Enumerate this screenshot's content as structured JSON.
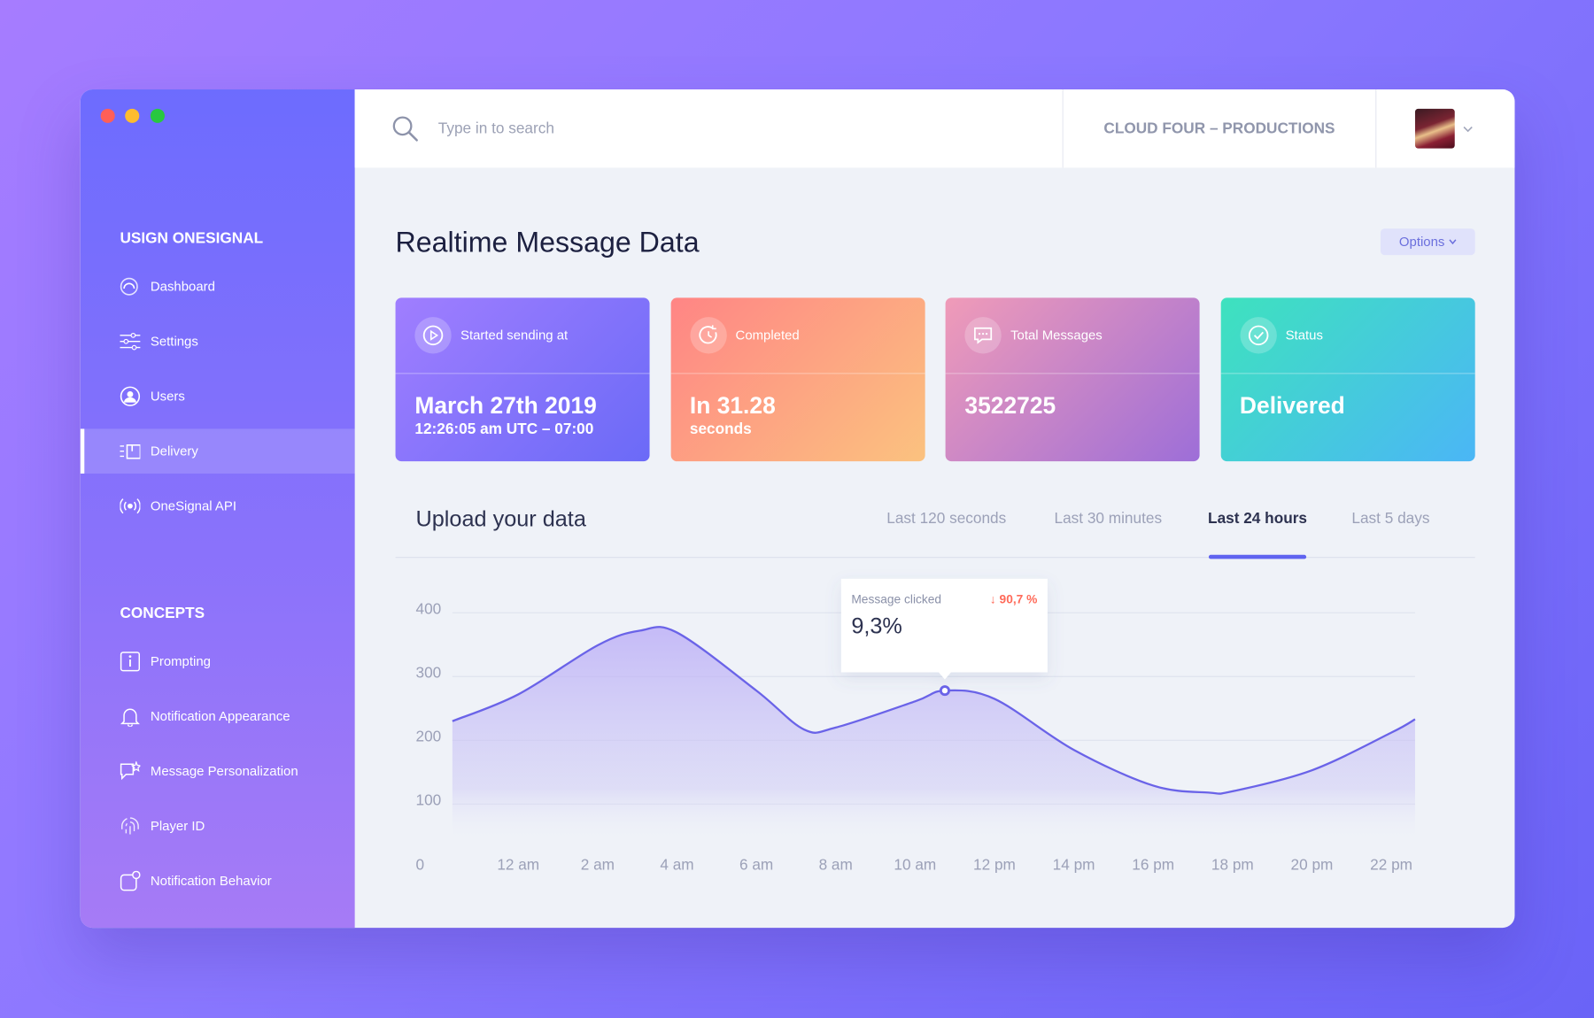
{
  "header": {
    "search_placeholder": "Type in to search",
    "workspace": "CLOUD FOUR – PRODUCTIONS"
  },
  "sidebar": {
    "sections": [
      {
        "title": "USIGN ONESIGNAL",
        "items": [
          {
            "label": "Dashboard"
          },
          {
            "label": "Settings"
          },
          {
            "label": "Users"
          },
          {
            "label": "Delivery",
            "active": true
          },
          {
            "label": "OneSignal API"
          }
        ]
      },
      {
        "title": "CONCEPTS",
        "items": [
          {
            "label": "Prompting"
          },
          {
            "label": "Notification Appearance"
          },
          {
            "label": "Message Personalization"
          },
          {
            "label": "Player ID"
          },
          {
            "label": "Notification Behavior"
          }
        ]
      }
    ]
  },
  "page": {
    "title": "Realtime Message Data",
    "options": "Options"
  },
  "cards": [
    {
      "label": "Started sending at",
      "value": "March 27th 2019",
      "sub": "12:26:05 am UTC – 07:00"
    },
    {
      "label": "Completed",
      "value": "In 31.28",
      "sub": "seconds"
    },
    {
      "label": "Total Messages",
      "value": 3522725
    },
    {
      "label": "Status",
      "value": "Delivered"
    }
  ],
  "tabs": {
    "title": "Upload your data",
    "items": [
      {
        "label": "Last 120 seconds"
      },
      {
        "label": "Last 30 minutes"
      },
      {
        "label": "Last 24 hours",
        "active": true
      },
      {
        "label": "Last 5 days"
      }
    ]
  },
  "chart_data": {
    "type": "area",
    "x": [
      -1.66,
      0,
      2,
      3.07,
      4,
      6,
      7.2,
      8,
      10,
      10.75,
      12,
      14,
      16,
      17.4,
      18,
      20,
      22,
      22.6
    ],
    "values": [
      230,
      272,
      349,
      372,
      369,
      278,
      217,
      220,
      261,
      278,
      265,
      185,
      129,
      118,
      120,
      153,
      212,
      233
    ],
    "color": "#6a63e8",
    "xlim": [
      -1.66,
      22.6
    ],
    "xticks": [
      {
        "value": 0,
        "label": "12 am"
      },
      {
        "value": 2,
        "label": "2 am"
      },
      {
        "value": 4,
        "label": "4 am"
      },
      {
        "value": 6,
        "label": "6 am"
      },
      {
        "value": 8,
        "label": "8 am"
      },
      {
        "value": 10,
        "label": "10 am"
      },
      {
        "value": 12,
        "label": "12 pm"
      },
      {
        "value": 14,
        "label": "14 pm"
      },
      {
        "value": 16,
        "label": "16 pm"
      },
      {
        "value": 18,
        "label": "18 pm"
      },
      {
        "value": 20,
        "label": "20 pm"
      },
      {
        "value": 22,
        "label": "22 pm"
      }
    ],
    "ylim": [
      0,
      400
    ],
    "yticks": [
      0,
      100,
      200,
      300,
      400
    ],
    "grid": true,
    "tooltip": {
      "point": 9,
      "label": "Message clicked",
      "change": "↓ 90,7 %",
      "value": "9,3%"
    }
  }
}
